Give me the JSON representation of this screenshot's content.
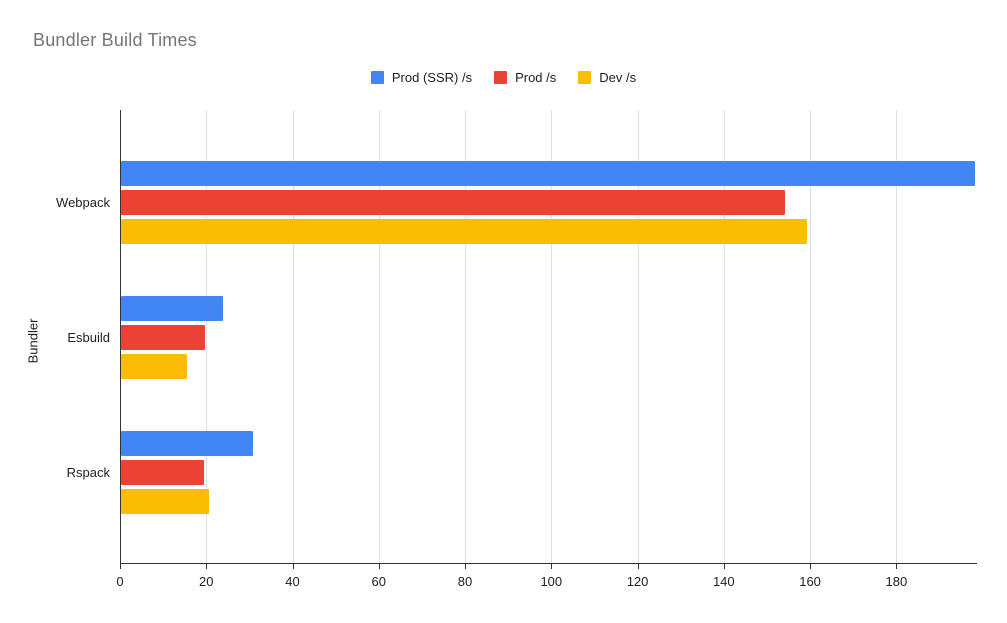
{
  "chart_data": {
    "type": "bar",
    "orientation": "horizontal",
    "title": "Bundler Build Times",
    "xlabel": "",
    "ylabel": "Bundler",
    "categories": [
      "Webpack",
      "Esbuild",
      "Rspack"
    ],
    "series": [
      {
        "name": "Prod (SSR) /s",
        "color": "#4285F4",
        "values": [
          198,
          23.7,
          30.6
        ]
      },
      {
        "name": "Prod /s",
        "color": "#EA4335",
        "values": [
          154,
          19.5,
          19.2
        ]
      },
      {
        "name": "Dev /s",
        "color": "#FBBC04",
        "values": [
          159,
          15.3,
          20.4
        ]
      }
    ],
    "xlim": [
      0,
      198.7
    ],
    "xticks": [
      0,
      20,
      40,
      60,
      80,
      100,
      120,
      140,
      160,
      180
    ],
    "grid": true,
    "legend_position": "top-center"
  },
  "colors": {
    "title_text": "#757575",
    "axis_text": "#212121",
    "gridline": "#e0e0e0",
    "axis_line": "#333333",
    "background": "#ffffff"
  }
}
